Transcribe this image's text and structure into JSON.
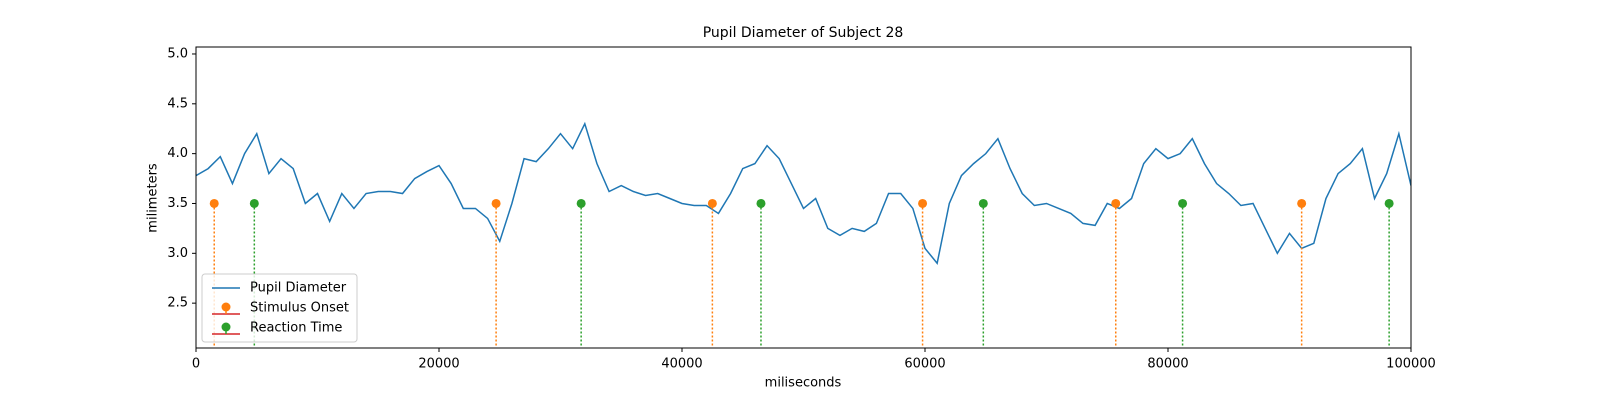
{
  "chart_data": {
    "type": "line",
    "title": "Pupil Diameter of Subject 28",
    "x_label": "miliseconds",
    "y_label": "milimeters",
    "xlim": [
      0,
      100000
    ],
    "ylim": [
      2.05,
      5.07
    ],
    "xticks": [
      0,
      20000,
      40000,
      60000,
      80000,
      100000
    ],
    "yticks": [
      2.5,
      {
        "value": 3,
        "label": "3.0"
      },
      3.5,
      {
        "value": 4,
        "label": "4.0"
      },
      4.5,
      {
        "value": 5,
        "label": "5.0"
      }
    ],
    "grid": false,
    "legend": "lower left",
    "series": [
      {
        "name": "Pupil Diameter",
        "kind": "line",
        "color": "#1f77b4",
        "x": [
          0,
          1000,
          2000,
          3000,
          4000,
          5000,
          6000,
          7000,
          8000,
          9000,
          10000,
          11000,
          12000,
          13000,
          14000,
          15000,
          16000,
          17000,
          18000,
          19000,
          20000,
          21000,
          22000,
          23000,
          24000,
          25000,
          26000,
          27000,
          28000,
          29000,
          30000,
          31000,
          32000,
          33000,
          34000,
          35000,
          36000,
          37000,
          38000,
          39000,
          40000,
          41000,
          42000,
          43000,
          44000,
          45000,
          46000,
          47000,
          48000,
          49000,
          50000,
          51000,
          52000,
          53000,
          54000,
          55000,
          56000,
          57000,
          58000,
          59000,
          60000,
          61000,
          62000,
          63000,
          64000,
          65000,
          66000,
          67000,
          68000,
          69000,
          70000,
          71000,
          72000,
          73000,
          74000,
          75000,
          76000,
          77000,
          78000,
          79000,
          80000,
          81000,
          82000,
          83000,
          84000,
          85000,
          86000,
          87000,
          88000,
          89000,
          90000,
          91000,
          92000,
          93000,
          94000,
          95000,
          96000,
          97000,
          98000,
          99000,
          100000
        ],
        "values": [
          3.78,
          3.85,
          3.97,
          3.7,
          4.0,
          4.2,
          3.8,
          3.95,
          3.85,
          3.5,
          3.6,
          3.32,
          3.6,
          3.45,
          3.6,
          3.62,
          3.62,
          3.6,
          3.75,
          3.82,
          3.88,
          3.7,
          3.45,
          3.45,
          3.35,
          3.12,
          3.5,
          3.95,
          3.92,
          4.05,
          4.2,
          4.05,
          4.3,
          3.9,
          3.62,
          3.68,
          3.62,
          3.58,
          3.6,
          3.55,
          3.5,
          3.48,
          3.48,
          3.4,
          3.6,
          3.85,
          3.9,
          4.08,
          3.95,
          3.7,
          3.45,
          3.55,
          3.25,
          3.18,
          3.25,
          3.22,
          3.3,
          3.6,
          3.6,
          3.45,
          3.05,
          2.9,
          3.5,
          3.78,
          3.9,
          4.0,
          4.15,
          3.85,
          3.6,
          3.48,
          3.5,
          3.45,
          3.4,
          3.3,
          3.28,
          3.5,
          3.45,
          3.55,
          3.9,
          4.05,
          3.95,
          4.0,
          4.15,
          3.9,
          3.7,
          3.6,
          3.48,
          3.5,
          3.25,
          3.0,
          3.2,
          3.05,
          3.1,
          3.55,
          3.8,
          3.9,
          4.05,
          3.55,
          3.8,
          4.2,
          3.68
        ]
      },
      {
        "name": "Stimulus Onset",
        "kind": "stem",
        "color": "#ff7f0e",
        "x": [
          1500,
          24700,
          42500,
          59800,
          75700,
          91000
        ],
        "values": [
          3.5,
          3.5,
          3.5,
          3.5,
          3.5,
          3.5
        ]
      },
      {
        "name": "Reaction Time",
        "kind": "stem",
        "color": "#2ca02c",
        "x": [
          4800,
          31700,
          46500,
          64800,
          81200,
          98200
        ],
        "values": [
          3.5,
          3.5,
          3.5,
          3.5,
          3.5,
          3.5
        ]
      }
    ]
  }
}
